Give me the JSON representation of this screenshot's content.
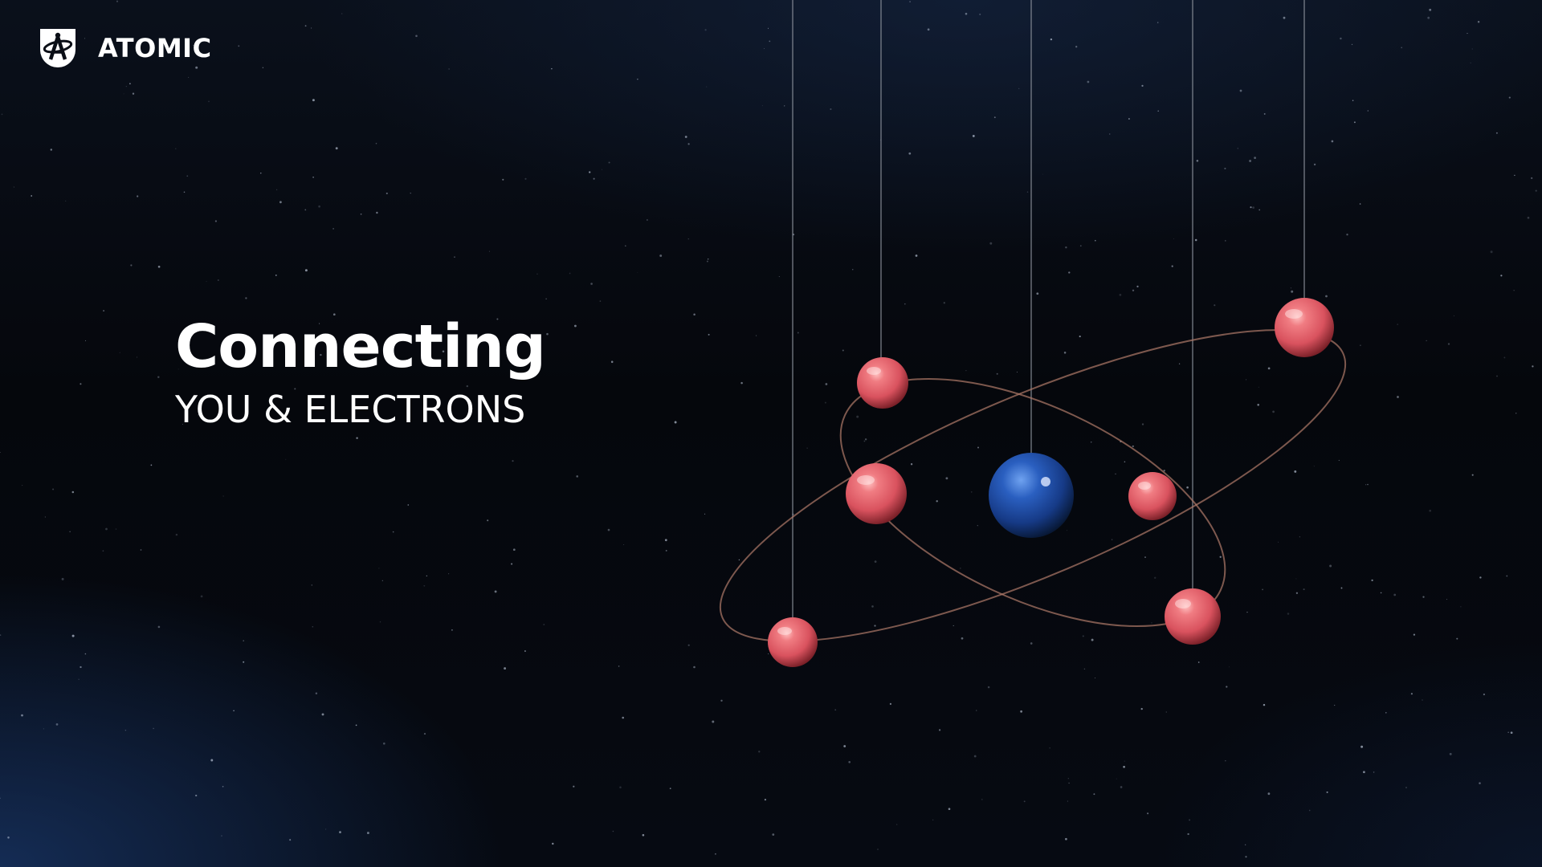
{
  "brand": {
    "name": "ATOMIC",
    "icon": "atom-shield-icon"
  },
  "hero": {
    "title": "Connecting",
    "subtitle": "YOU & ELECTRONS"
  },
  "illustration": {
    "nucleus_icon": "nucleus-sphere",
    "electron_icon": "electron-sphere",
    "colors": {
      "electron": "#e2606a",
      "nucleus": "#1f4fa8",
      "orbit": "#b07a6a",
      "string": "#8a8f99"
    }
  }
}
